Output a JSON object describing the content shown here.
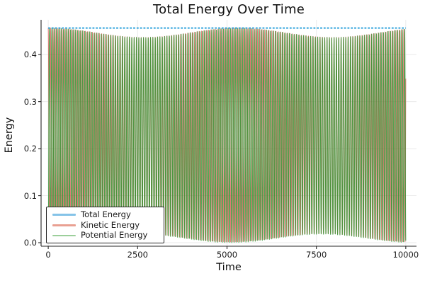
{
  "chart_data": {
    "type": "line",
    "title": "Total Energy Over Time",
    "xlabel": "Time",
    "ylabel": "Energy",
    "xlim": [
      -200,
      10300
    ],
    "ylim": [
      -0.0075,
      0.474
    ],
    "xticks": [
      0,
      2500,
      5000,
      7500,
      10000
    ],
    "yticks": [
      0.0,
      0.1,
      0.2,
      0.3,
      0.4
    ],
    "grid": true,
    "grid_color": "#eaeaea",
    "spine_color": "#262626",
    "background": "#ffffff",
    "t_range": [
      0,
      10000
    ],
    "total_energy_value": 0.4565,
    "envelope": {
      "top_max": 0.4565,
      "top_dip_depth": 0.02,
      "top_beat_period": 5300,
      "bottom_min": 0.0,
      "bottom_rise": 0.018,
      "bottom_beat_period": 5100
    },
    "series": [
      {
        "name": "Total Energy",
        "model": "constant",
        "value": 0.4565,
        "color": "rgba(40,160,220,0.85)",
        "legend_color": "#85c3e8",
        "style": "dashed",
        "dash": [
          2.8,
          2.0
        ],
        "line_width": 2.2
      },
      {
        "name": "Kinetic Energy",
        "model": "oscillation",
        "fast_period": 65,
        "phase": 0,
        "color": "rgba(209,52,44,0.65)",
        "legend_color": "#e9a092",
        "style": "solid",
        "line_width": 1.0
      },
      {
        "name": "Potential Energy",
        "model": "oscillation",
        "fast_period": 65.8,
        "phase": 3.14159,
        "color": "rgba(40,150,45,0.8)",
        "legend_color": "#9ccf9b",
        "style": "solid",
        "line_width": 1.1
      }
    ],
    "legend_position": "lower left"
  }
}
